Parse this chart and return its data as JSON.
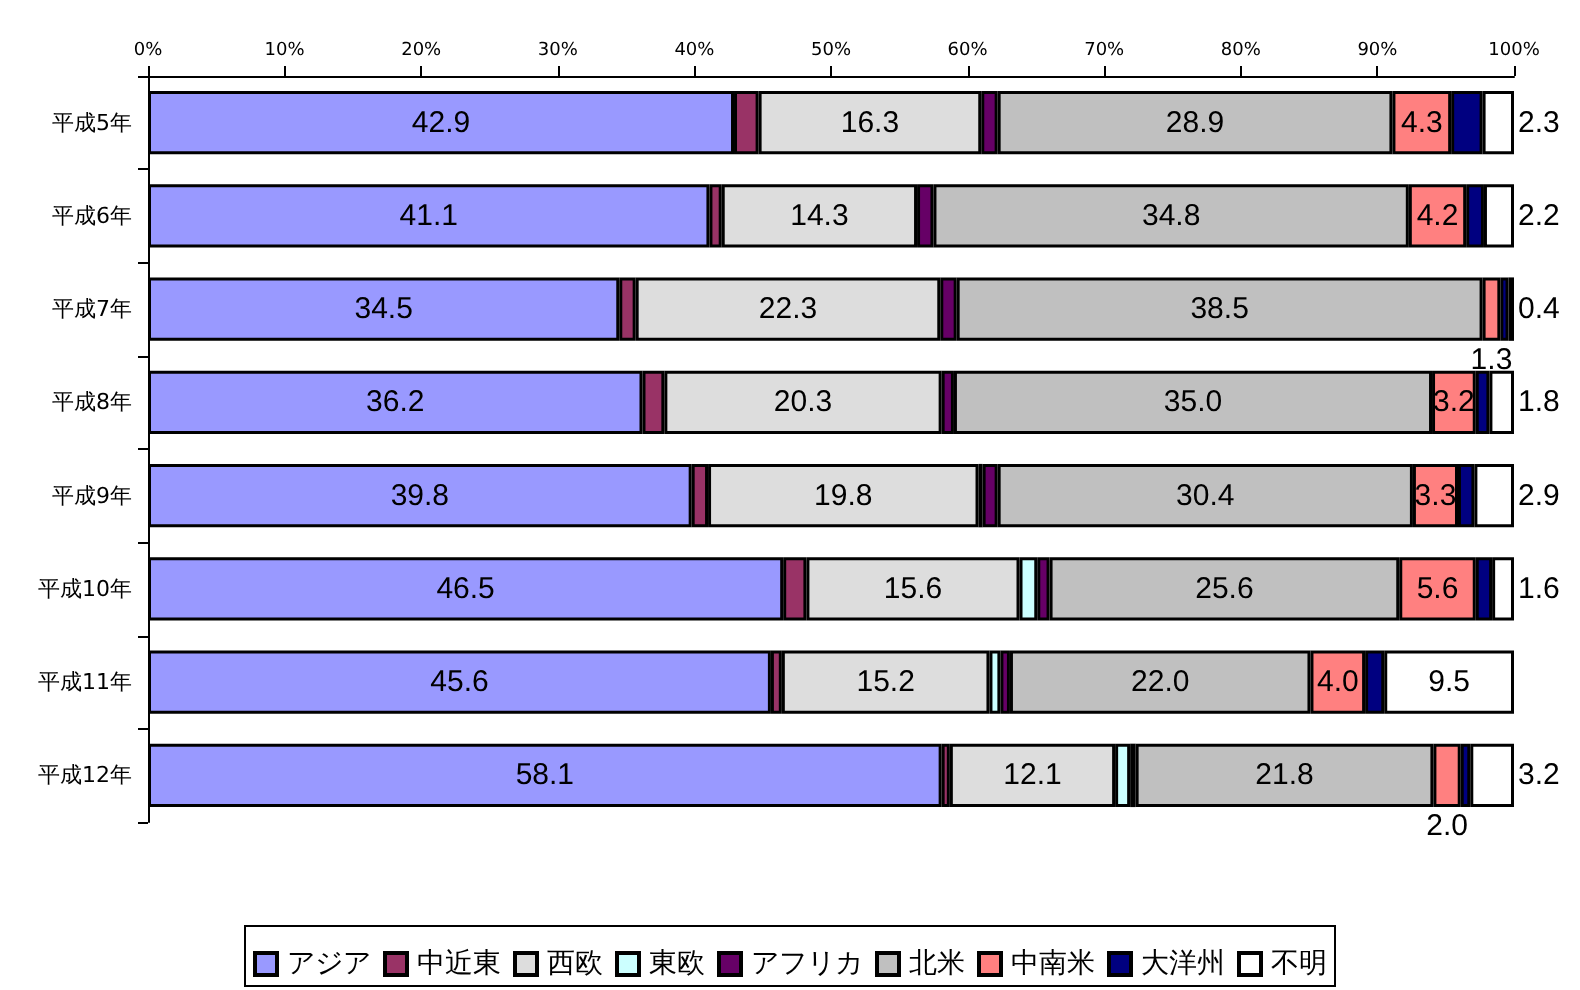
{
  "chart_data": {
    "type": "bar",
    "orientation": "horizontal",
    "stacked": true,
    "legend": "bottom",
    "grid": false,
    "categories": [
      "平成5年",
      "平成6年",
      "平成7年",
      "平成8年",
      "平成9年",
      "平成10年",
      "平成11年",
      "平成12年"
    ],
    "xlim": [
      0,
      100
    ],
    "xticks": [
      {
        "value": 0,
        "label": "0%"
      },
      {
        "value": 10,
        "label": "10%"
      },
      {
        "value": 20,
        "label": "20%"
      },
      {
        "value": 30,
        "label": "30%"
      },
      {
        "value": 40,
        "label": "40%"
      },
      {
        "value": 50,
        "label": "50%"
      },
      {
        "value": 60,
        "label": "60%"
      },
      {
        "value": 70,
        "label": "70%"
      },
      {
        "value": 80,
        "label": "80%"
      },
      {
        "value": 90,
        "label": "90%"
      },
      {
        "value": 100,
        "label": "100%"
      }
    ],
    "series": [
      {
        "name": "アジア",
        "color": "#9999ff",
        "values": [
          42.9,
          41.1,
          34.5,
          36.2,
          39.8,
          46.5,
          45.6,
          58.1
        ],
        "value_labels": [
          "42.9",
          "41.1",
          "34.5",
          "36.2",
          "39.8",
          "46.5",
          "45.6",
          "58.1"
        ]
      },
      {
        "name": "中近東",
        "color": "#993366",
        "values": [
          1.8,
          0.9,
          1.2,
          1.6,
          1.2,
          1.7,
          0.8,
          0.6
        ]
      },
      {
        "name": "西欧",
        "color": "#dddddd",
        "values": [
          16.3,
          14.3,
          22.3,
          20.3,
          19.8,
          15.6,
          15.2,
          12.1
        ],
        "value_labels": [
          "16.3",
          "14.3",
          "22.3",
          "20.3",
          "19.8",
          "15.6",
          "15.2",
          "12.1"
        ]
      },
      {
        "name": "東欧",
        "color": "#ccffff",
        "values": [
          0,
          0,
          0,
          0,
          0.3,
          1.3,
          0.8,
          1.1
        ]
      },
      {
        "name": "アフリカ",
        "color": "#660066",
        "values": [
          1.2,
          1.2,
          1.2,
          0.9,
          1.1,
          0.9,
          0.7,
          0.4
        ]
      },
      {
        "name": "北米",
        "color": "#c0c0c0",
        "values": [
          28.9,
          34.8,
          38.5,
          35.0,
          30.4,
          25.6,
          22.0,
          21.8
        ],
        "value_labels": [
          "28.9",
          "34.8",
          "38.5",
          "35.0",
          "30.4",
          "25.6",
          "22.0",
          "21.8"
        ]
      },
      {
        "name": "中南米",
        "color": "#ff8080",
        "values": [
          4.3,
          4.2,
          1.3,
          3.2,
          3.3,
          5.6,
          4.0,
          2.0
        ],
        "value_labels": [
          "4.3",
          "4.2",
          "1.3",
          "3.2",
          "3.3",
          "5.6",
          "4.0",
          "2.0"
        ]
      },
      {
        "name": "大洋州",
        "color": "#000080",
        "values": [
          2.3,
          1.3,
          0.6,
          1.0,
          1.2,
          1.2,
          1.4,
          0.7
        ]
      },
      {
        "name": "不明",
        "color": "#ffffff",
        "values": [
          2.3,
          2.2,
          0.4,
          1.8,
          2.9,
          1.6,
          9.5,
          3.2
        ],
        "value_labels": [
          "2.3",
          "2.2",
          "0.4",
          "1.8",
          "2.9",
          "1.6",
          "9.5",
          "3.2"
        ]
      }
    ]
  }
}
